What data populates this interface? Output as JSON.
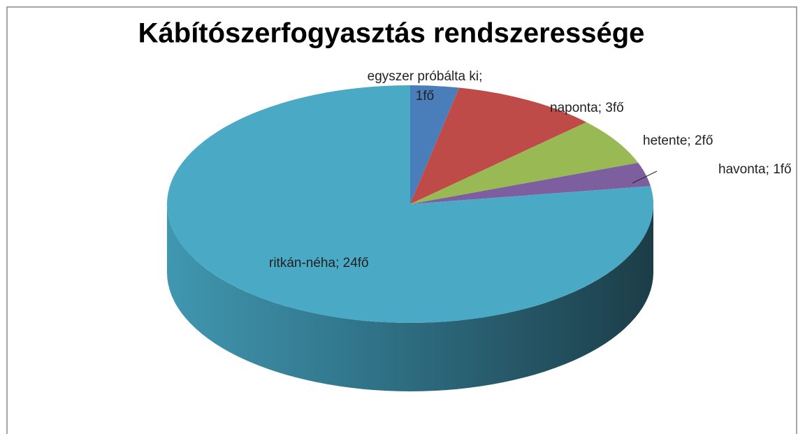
{
  "chart_data": {
    "type": "pie3d",
    "title": "Kábítószerfogyasztás rendszeressége",
    "categories": [
      "egyszer próbálta ki",
      "naponta",
      "hetente",
      "havonta",
      "ritkán-néha"
    ],
    "values": [
      1,
      3,
      2,
      1,
      24
    ],
    "value_labels": [
      "1fő",
      "3fő",
      "2fő",
      "1fő",
      "24fő"
    ],
    "label_separator": "; ",
    "colors": [
      "#4a7ebb",
      "#be4b48",
      "#98b954",
      "#7d5fa0",
      "#4aa9c4"
    ]
  }
}
